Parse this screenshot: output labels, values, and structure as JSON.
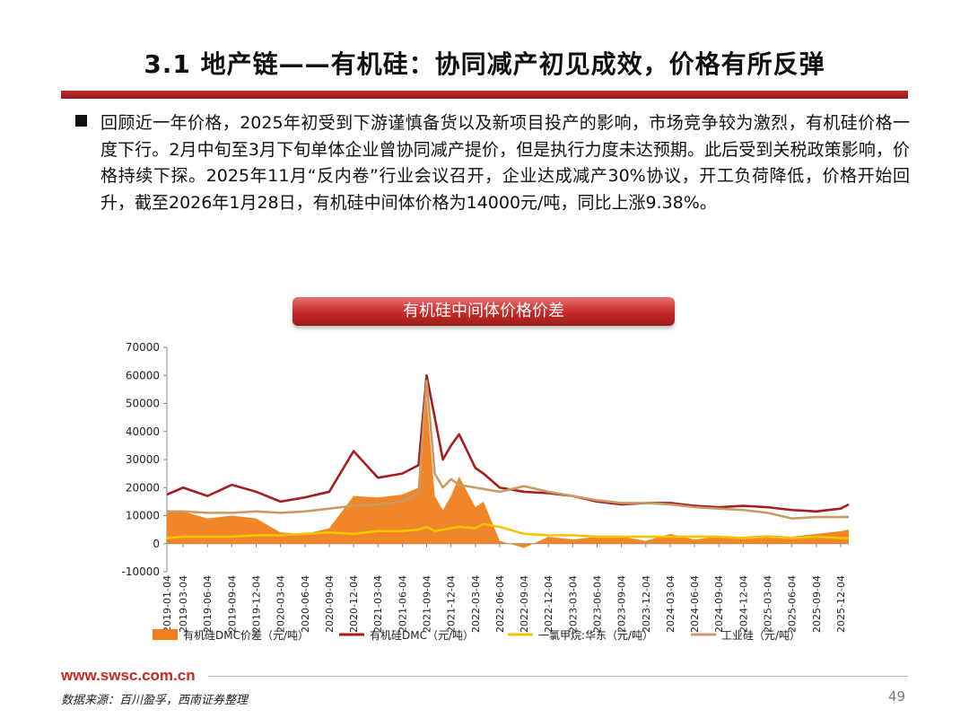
{
  "slide": {
    "title": "3.1 地产链——有机硅：协同减产初见成效，价格有所反弹",
    "bullet": "回顾近一年价格，2025年初受到下游谨慎备货以及新项目投产的影响，市场竞争较为激烈，有机硅价格一度下行。2月中旬至3月下旬单体企业曾协同减产提价，但是执行力度未达预期。此后受到关税政策影响，价格持续下探。2025年11月“反内卷”行业会议召开，企业达成减产30%协议，开工负荷降低，价格开始回升，截至2026年1月28日，有机硅中间体价格为14000元/吨，同比上涨9.38%。",
    "chart_header": "有机硅中间体价格价差",
    "footer_url": "www.swsc.com.cn",
    "source": "数据来源：百川盈孚，西南证券整理",
    "page_number": "49"
  },
  "colors": {
    "brand_red": "#c62828",
    "spread": "#f07f1e",
    "dmc": "#a51d1d",
    "methyl_chloride": "#f5c400",
    "silicon": "#c89a66"
  },
  "chart_data": {
    "type": "line",
    "title": "",
    "ylim": [
      -10000,
      70000
    ],
    "yticks": [
      -10000,
      0,
      10000,
      20000,
      30000,
      40000,
      50000,
      60000,
      70000
    ],
    "xticks": [
      "2019-01-04",
      "2019-03-04",
      "2019-06-04",
      "2019-09-04",
      "2019-12-04",
      "2020-03-04",
      "2020-06-04",
      "2020-09-04",
      "2020-12-04",
      "2021-03-04",
      "2021-06-04",
      "2021-09-04",
      "2021-12-04",
      "2022-03-04",
      "2022-06-04",
      "2022-09-04",
      "2022-12-04",
      "2023-03-04",
      "2023-06-04",
      "2023-09-04",
      "2023-12-04",
      "2024-03-04",
      "2024-06-04",
      "2024-09-04",
      "2024-12-04",
      "2025-03-04",
      "2025-06-04",
      "2025-09-04",
      "2025-12-04"
    ],
    "x": [
      "2019-01",
      "2019-03",
      "2019-06",
      "2019-09",
      "2019-12",
      "2020-03",
      "2020-06",
      "2020-09",
      "2020-12",
      "2021-03",
      "2021-06",
      "2021-08",
      "2021-09",
      "2021-10",
      "2021-11",
      "2021-12",
      "2022-01",
      "2022-03",
      "2022-04",
      "2022-06",
      "2022-09",
      "2022-12",
      "2023-03",
      "2023-06",
      "2023-09",
      "2023-12",
      "2024-03",
      "2024-06",
      "2024-09",
      "2024-12",
      "2025-03",
      "2025-06",
      "2025-09",
      "2025-12",
      "2026-01"
    ],
    "series": [
      {
        "name": "有机硅DMC价差（元/吨）",
        "type": "area",
        "color": "#f07f1e",
        "values": [
          12000,
          11500,
          9000,
          10000,
          9000,
          4000,
          3500,
          5500,
          17000,
          16500,
          17500,
          20000,
          52000,
          17000,
          12000,
          17000,
          24000,
          13000,
          15000,
          1000,
          -1500,
          2500,
          1500,
          2500,
          2500,
          1000,
          3500,
          1500,
          2500,
          2500,
          3000,
          2500,
          3500,
          4500,
          5000
        ]
      },
      {
        "name": "有机硅DMC（元/吨）",
        "type": "line",
        "color": "#a51d1d",
        "values": [
          17500,
          20000,
          17000,
          21000,
          18500,
          15000,
          16500,
          18500,
          33000,
          23500,
          25000,
          28000,
          60000,
          45000,
          30000,
          35000,
          39000,
          27000,
          25000,
          20000,
          18500,
          18000,
          17000,
          15000,
          14000,
          14500,
          14500,
          13500,
          13000,
          13500,
          13000,
          12000,
          11500,
          12500,
          14000
        ]
      },
      {
        "name": "一氯甲烷:华东（元/吨）",
        "type": "line",
        "color": "#f5c400",
        "values": [
          2000,
          2500,
          2500,
          2500,
          3000,
          3000,
          3500,
          4000,
          3500,
          4500,
          4500,
          5000,
          6000,
          4500,
          5000,
          5500,
          6000,
          5500,
          7000,
          6000,
          3500,
          3000,
          3000,
          2500,
          2500,
          2500,
          2500,
          2500,
          2500,
          2000,
          2500,
          2000,
          2500,
          2000,
          2000
        ]
      },
      {
        "name": "工业硅（元/吨）",
        "type": "line",
        "color": "#c89a66",
        "values": [
          11500,
          11500,
          11000,
          11000,
          11500,
          11000,
          11500,
          12500,
          13500,
          14000,
          15000,
          18000,
          58000,
          25000,
          20000,
          23000,
          21000,
          20000,
          19500,
          18500,
          20500,
          18500,
          17000,
          15500,
          14500,
          14500,
          14000,
          13000,
          12500,
          12000,
          11000,
          9000,
          9500,
          9500,
          9500
        ]
      }
    ],
    "legend_position": "bottom",
    "grid": false
  }
}
